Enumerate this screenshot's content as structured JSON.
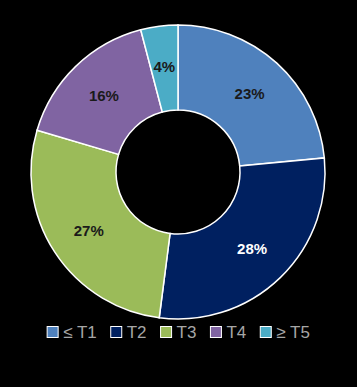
{
  "chart_data": {
    "type": "donut",
    "categories": [
      "≤ T1",
      "T2",
      "T3",
      "T4",
      "≥ T5"
    ],
    "values": [
      23,
      28,
      27,
      16,
      4
    ],
    "value_labels": [
      "23%",
      "28%",
      "27%",
      "16%",
      "4%"
    ],
    "colors": [
      "#4f81bd",
      "#002060",
      "#9bbb59",
      "#8064a2",
      "#4bacc6"
    ],
    "data_labels": true,
    "legend": "bottom"
  }
}
